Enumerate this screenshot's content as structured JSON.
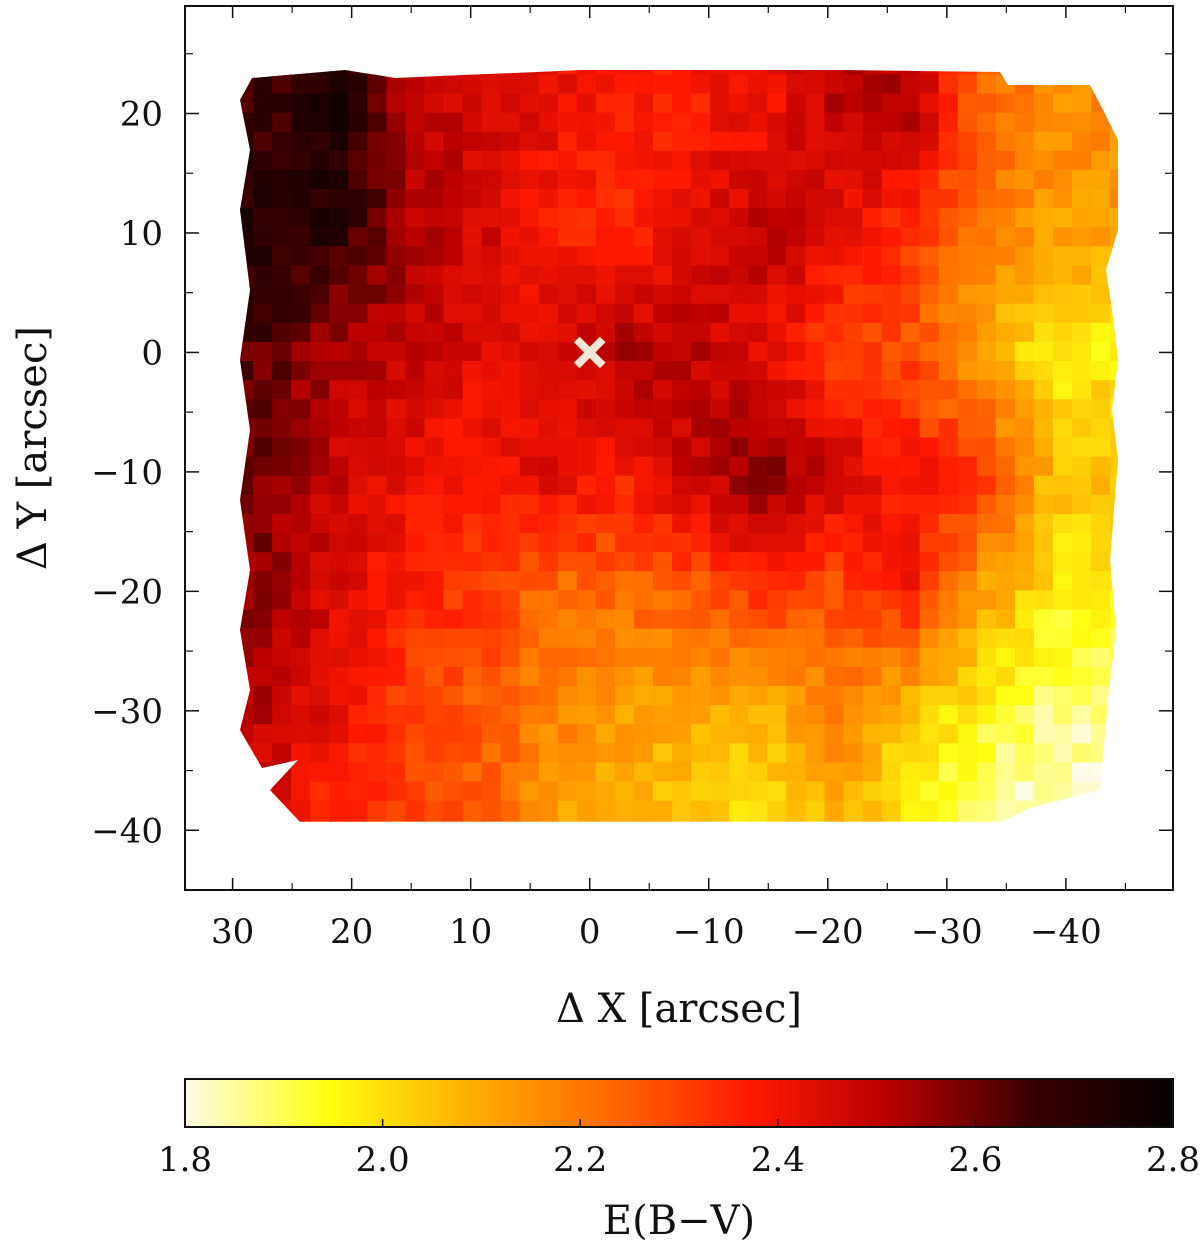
{
  "chart_data": {
    "type": "heatmap",
    "title": "",
    "xlabel": "Δ X [arcsec]",
    "ylabel": "Δ Y [arcsec]",
    "xlim": [
      34,
      -49
    ],
    "ylim": [
      -45,
      29
    ],
    "x_inverted": true,
    "xticks": [
      30,
      20,
      10,
      0,
      -10,
      -20,
      -30,
      -40
    ],
    "xtick_labels": [
      "30",
      "20",
      "10",
      "0",
      "−10",
      "−20",
      "−30",
      "−40"
    ],
    "yticks": [
      20,
      10,
      0,
      -10,
      -20,
      -30,
      -40
    ],
    "ytick_labels": [
      "20",
      "10",
      "0",
      "−10",
      "−20",
      "−30",
      "−40"
    ],
    "marker": {
      "symbol": "×",
      "x": 0,
      "y": 0,
      "color": "#f3e6d6"
    },
    "colorbar": {
      "label": "E(B−V)",
      "range": [
        1.8,
        2.8
      ],
      "ticks": [
        1.8,
        2.0,
        2.2,
        2.4,
        2.6,
        2.8
      ],
      "tick_labels": [
        "1.8",
        "2.0",
        "2.2",
        "2.4",
        "2.6",
        "2.8"
      ],
      "colormap": "hot_r",
      "colors": [
        "#fffbe8",
        "#ffff10",
        "#ffb000",
        "#ff6a00",
        "#ff1a00",
        "#b80000",
        "#3a0000",
        "#050000"
      ]
    },
    "field_coverage_arcsec": {
      "x_range": [
        28,
        -44
      ],
      "y_range": [
        -39,
        23
      ]
    },
    "rows_y": [
      20,
      10,
      0,
      -10,
      -20,
      -30,
      -38
    ],
    "cols_x": [
      27,
      21,
      15,
      9,
      3,
      -3,
      -9,
      -15,
      -21,
      -27,
      -33,
      -39
    ],
    "grid_values": [
      [
        2.66,
        2.72,
        2.52,
        2.46,
        2.42,
        2.36,
        2.38,
        2.4,
        2.5,
        2.52,
        2.24,
        2.16
      ],
      [
        2.72,
        2.7,
        2.52,
        2.46,
        2.38,
        2.34,
        2.44,
        2.5,
        2.42,
        2.32,
        2.2,
        2.12
      ],
      [
        2.62,
        2.52,
        2.5,
        2.44,
        2.46,
        2.52,
        2.5,
        2.42,
        2.3,
        2.28,
        2.1,
        1.98
      ],
      [
        2.58,
        2.48,
        2.42,
        2.36,
        2.46,
        2.38,
        2.5,
        2.58,
        2.48,
        2.38,
        2.34,
        2.06
      ],
      [
        2.56,
        2.44,
        2.36,
        2.32,
        2.22,
        2.24,
        2.26,
        2.34,
        2.28,
        2.38,
        2.12,
        1.98
      ],
      [
        2.5,
        2.42,
        2.3,
        2.26,
        2.18,
        2.12,
        2.1,
        2.08,
        2.18,
        2.04,
        1.96,
        1.86
      ],
      [
        2.46,
        2.34,
        2.3,
        2.24,
        2.14,
        2.08,
        2.06,
        2.0,
        2.1,
        1.96,
        1.86,
        1.82
      ]
    ]
  }
}
